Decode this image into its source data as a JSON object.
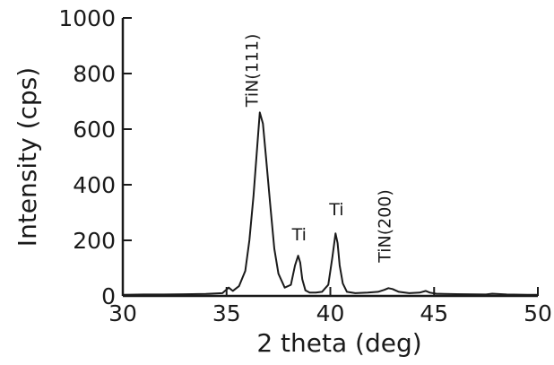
{
  "chart_data": {
    "type": "line",
    "title": "",
    "xlabel": "2  theta  (deg)",
    "ylabel": "Intensity  (cps)",
    "xlim": [
      30,
      50
    ],
    "ylim": [
      0,
      1000
    ],
    "xticks": [
      30,
      35,
      40,
      45,
      50
    ],
    "yticks": [
      0,
      200,
      400,
      600,
      800,
      1000
    ],
    "grid": false,
    "legend": "none",
    "line_color": "#1a1a1a",
    "series": [
      {
        "x": [
          30.0,
          31.0,
          32.0,
          33.0,
          34.0,
          34.8,
          35.1,
          35.3,
          35.6,
          35.9,
          36.1,
          36.3,
          36.45,
          36.6,
          36.75,
          36.9,
          37.1,
          37.3,
          37.5,
          37.8,
          38.1,
          38.3,
          38.45,
          38.55,
          38.65,
          38.8,
          39.0,
          39.3,
          39.6,
          39.9,
          40.1,
          40.25,
          40.35,
          40.45,
          40.6,
          40.8,
          41.2,
          41.8,
          42.3,
          42.6,
          42.8,
          43.0,
          43.3,
          43.8,
          44.3,
          44.6,
          44.8,
          45.1,
          45.5,
          46.5,
          47.5,
          47.8,
          48.5,
          49.5,
          50.0
        ],
        "y": [
          4,
          5,
          5,
          6,
          7,
          10,
          30,
          18,
          35,
          90,
          200,
          360,
          510,
          660,
          620,
          500,
          330,
          170,
          80,
          30,
          40,
          110,
          145,
          120,
          60,
          20,
          12,
          12,
          15,
          40,
          140,
          225,
          190,
          110,
          45,
          15,
          10,
          12,
          15,
          22,
          28,
          25,
          15,
          10,
          12,
          18,
          12,
          8,
          7,
          6,
          5,
          8,
          5,
          4,
          4
        ]
      }
    ],
    "annotations": [
      {
        "text": "TiN(111)",
        "x": 36.5,
        "y": 680,
        "rotation": -90
      },
      {
        "text": "Ti",
        "x": 38.5,
        "y": 200
      },
      {
        "text": "Ti",
        "x": 40.3,
        "y": 290
      },
      {
        "text": "TiN(200)",
        "x": 42.9,
        "y": 120,
        "rotation": -90
      }
    ]
  }
}
